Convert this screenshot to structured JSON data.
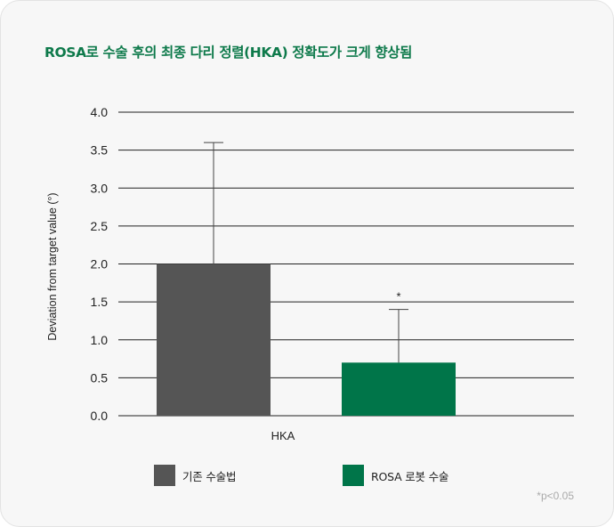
{
  "title": "ROSA로 수술 후의 최종 다리 정렬(HKA) 정확도가 크게 향상됨",
  "footnote": "*p<0.05",
  "colors": {
    "title": "#0e7a4b",
    "conventional": "#555555",
    "rosa": "#007549",
    "grid": "#222222"
  },
  "chart_data": {
    "type": "bar",
    "categories": [
      "HKA"
    ],
    "ylabel": "Deviation from target value (°)",
    "xlabel": "",
    "ylim": [
      0,
      4.0
    ],
    "yticks": [
      "0.0",
      "0.5",
      "1.0",
      "1.5",
      "2.0",
      "2.5",
      "3.0",
      "3.5",
      "4.0"
    ],
    "grid": true,
    "legend_position": "bottom",
    "series": [
      {
        "name": "기존 수술법",
        "values": [
          2.0
        ],
        "error_upper": [
          3.6
        ],
        "significance": ""
      },
      {
        "name": "ROSA 로봇 수술",
        "values": [
          0.7
        ],
        "error_upper": [
          1.4
        ],
        "significance": "*"
      }
    ]
  }
}
